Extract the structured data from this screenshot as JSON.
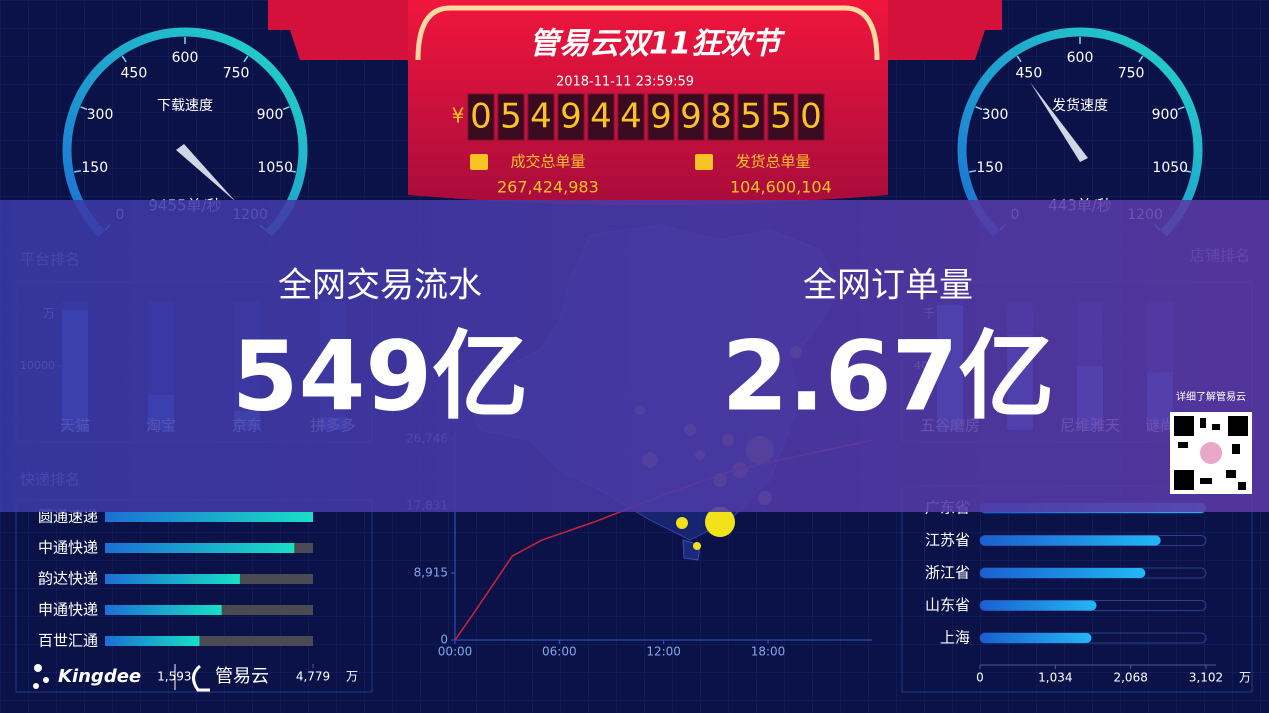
{
  "header": {
    "title": "管易云双11狂欢节",
    "datetime": "2018-11-11 23:59:59",
    "currency": "¥",
    "digits": [
      "0",
      "5",
      "4",
      "9",
      "4",
      "4",
      "9",
      "9",
      "8",
      "5",
      "5",
      "0"
    ],
    "stats": [
      {
        "label": "成交总单量",
        "value": "267,424,983"
      },
      {
        "label": "发货总单量",
        "value": "104,600,104"
      }
    ]
  },
  "gauges": [
    {
      "title": "下载速度",
      "reading": "9455单/秒",
      "lim": [
        0,
        1200
      ],
      "ticks": [
        0,
        150,
        300,
        450,
        600,
        750,
        900,
        1050,
        1200
      ]
    },
    {
      "title": "发货速度",
      "reading": "443单/秒",
      "lim": [
        0,
        1200
      ],
      "ticks": [
        0,
        150,
        300,
        450,
        600,
        750,
        900,
        1050,
        1200
      ]
    }
  ],
  "overlay": {
    "items": [
      {
        "label": "全网交易流水",
        "value": "549亿"
      },
      {
        "label": "全网订单量",
        "value": "2.67亿"
      }
    ]
  },
  "charts": {
    "platform": {
      "type": "bar",
      "title": "平台排名",
      "unit": "万",
      "categories": [
        "天猫",
        "淘宝",
        "京东",
        "拼多多"
      ],
      "values": [
        18750,
        5470,
        3000,
        2000
      ],
      "ylim": [
        0,
        20000
      ],
      "yticks": [
        10000
      ],
      "color": "#2a6fdb"
    },
    "shop": {
      "type": "bar",
      "title": "店铺排名",
      "unit": "千",
      "categories": [
        "五谷磨房",
        null,
        "尼维雅天",
        "谜尚"
      ],
      "values": [
        780,
        600,
        400,
        360
      ],
      "ylim": [
        0,
        800
      ],
      "yticks": [
        400
      ],
      "color": "#2a6fdb"
    },
    "express": {
      "type": "hbar",
      "title": "快递排名",
      "unit": "万",
      "categories": [
        "圆通速递",
        "中通快递",
        "韵达快递",
        "申通快递",
        "百世汇通"
      ],
      "values": [
        4779,
        4350,
        3100,
        2680,
        2170
      ],
      "xlim": [
        0,
        4779
      ],
      "xticks": [
        {
          "value": 1593,
          "label": "1,593"
        },
        {
          "value": 4779,
          "label": "4,779"
        }
      ],
      "color": "#18d6c8"
    },
    "trend": {
      "type": "line",
      "x": [
        0,
        1,
        3.3,
        5,
        8,
        12,
        16,
        20,
        24
      ],
      "values": [
        0,
        3300,
        11180,
        13300,
        15700,
        19300,
        22600,
        24600,
        26600
      ],
      "xlim": [
        0,
        24
      ],
      "xticks": [
        {
          "value": 0,
          "label": "00:00"
        },
        {
          "value": 6,
          "label": "06:00"
        },
        {
          "value": 12,
          "label": "12:00"
        },
        {
          "value": 18,
          "label": "18:00"
        }
      ],
      "ylim": [
        0,
        26746
      ],
      "yticks": [
        0,
        {
          "value": 8915,
          "label": "8,915"
        },
        {
          "value": 17831,
          "label": "17,831"
        },
        {
          "value": 26746,
          "label": "26,746"
        }
      ],
      "color": "#d0203a"
    },
    "province": {
      "type": "hbar",
      "unit": "万",
      "categories": [
        "广东省",
        "江苏省",
        "浙江省",
        "山东省",
        "上海"
      ],
      "values": [
        3100,
        2480,
        2270,
        1600,
        1530
      ],
      "xlim": [
        0,
        3102
      ],
      "xticks": [
        0,
        {
          "value": 1034,
          "label": "1,034"
        },
        {
          "value": 2068,
          "label": "2,068"
        },
        {
          "value": 3102,
          "label": "3,102"
        }
      ],
      "color": "#1aa0f0"
    }
  },
  "qr_caption": "详细了解管易云",
  "logos": [
    "Kingdee",
    "管易云"
  ]
}
